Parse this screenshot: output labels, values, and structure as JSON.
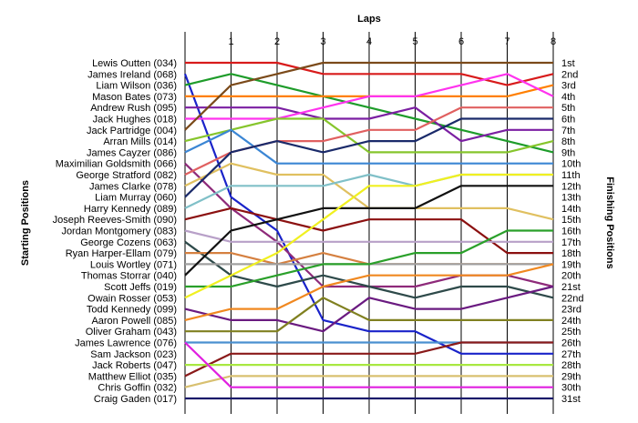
{
  "chart_data": {
    "type": "line",
    "title": "",
    "xlabel": "Laps",
    "ylabel_left": "Starting Positions",
    "ylabel_right": "Finishing Positions",
    "laps": [
      1,
      2,
      3,
      4,
      5,
      6,
      7,
      8
    ],
    "x_range": [
      0,
      8
    ],
    "position_range": [
      1,
      31
    ],
    "grid": "vertical lines at each lap",
    "drivers": [
      "Lewis Outten (034)",
      "James Ireland (068)",
      "Liam Wilson (036)",
      "Mason Bates (073)",
      "Andrew Rush (095)",
      "Jack Hughes (018)",
      "Jack Partridge (004)",
      "Arran Mills (014)",
      "James Cayzer (086)",
      "Maximilian Goldsmith (066)",
      "George Stratford (082)",
      "James Clarke (078)",
      "Liam Murray (060)",
      "Harry Kennedy (089)",
      "Joseph Reeves-Smith (090)",
      "Jordan Montgomery (083)",
      "George Cozens (063)",
      "Ryan Harper-Ellam (079)",
      "Louis Wortley (071)",
      "Thomas Storrar (040)",
      "Scott Jeffs (019)",
      "Owain Rosser (053)",
      "Todd Kennedy (099)",
      "Aaron Powell (085)",
      "Oliver Graham (043)",
      "James Lawrence (076)",
      "Sam Jackson (023)",
      "Jack Roberts (047)",
      "Matthew Elliot (035)",
      "Chris Goffin (032)",
      "Craig Gaden (017)"
    ],
    "finish_labels": [
      "1st",
      "2nd",
      "3rd",
      "4th",
      "5th",
      "6th",
      "7th",
      "8th",
      "9th",
      "10th",
      "11th",
      "12th",
      "13th",
      "14th",
      "15th",
      "16th",
      "17th",
      "18th",
      "19th",
      "20th",
      "21st",
      "22nd",
      "23rd",
      "24th",
      "25th",
      "26th",
      "27th",
      "28th",
      "29th",
      "30th",
      "31st"
    ],
    "series": [
      {
        "color": "#d81b1b",
        "positions": [
          1,
          1,
          1,
          2,
          2,
          2,
          2,
          3,
          2
        ]
      },
      {
        "color": "#1a23c9",
        "positions": [
          2,
          13,
          16,
          24,
          25,
          25,
          27,
          27,
          27
        ]
      },
      {
        "color": "#1e9c2a",
        "positions": [
          3,
          2,
          3,
          4,
          5,
          6,
          7,
          8,
          9
        ]
      },
      {
        "color": "#ff7f00",
        "positions": [
          4,
          4,
          4,
          4,
          4,
          4,
          4,
          4,
          3
        ]
      },
      {
        "color": "#7b1fa2",
        "positions": [
          5,
          5,
          5,
          6,
          6,
          5,
          8,
          7,
          7
        ]
      },
      {
        "color": "#ff33ee",
        "positions": [
          6,
          6,
          6,
          5,
          4,
          4,
          3,
          2,
          4
        ]
      },
      {
        "color": "#7b4a1a",
        "positions": [
          7,
          3,
          2,
          1,
          1,
          1,
          1,
          1,
          1
        ]
      },
      {
        "color": "#86c52c",
        "positions": [
          8,
          7,
          6,
          6,
          9,
          9,
          9,
          9,
          8
        ]
      },
      {
        "color": "#3b86d4",
        "positions": [
          9,
          7,
          10,
          10,
          10,
          10,
          10,
          10,
          10
        ]
      },
      {
        "color": "#8e2a7a",
        "positions": [
          10,
          14,
          17,
          21,
          21,
          21,
          20,
          20,
          21
        ]
      },
      {
        "color": "#e06060",
        "positions": [
          11,
          9,
          8,
          8,
          7,
          7,
          5,
          5,
          5
        ]
      },
      {
        "color": "#e0c060",
        "positions": [
          12,
          10,
          11,
          11,
          14,
          14,
          14,
          14,
          15
        ]
      },
      {
        "color": "#1a2a6a",
        "positions": [
          13,
          9,
          8,
          9,
          8,
          8,
          6,
          6,
          6
        ]
      },
      {
        "color": "#80c0c8",
        "positions": [
          14,
          12,
          12,
          12,
          11,
          12,
          11,
          11,
          11
        ]
      },
      {
        "color": "#8b1010",
        "positions": [
          15,
          14,
          15,
          16,
          15,
          15,
          15,
          18,
          18
        ]
      },
      {
        "color": "#b8a0c8",
        "positions": [
          16,
          17,
          17,
          17,
          17,
          17,
          17,
          17,
          17
        ]
      },
      {
        "color": "#2e4a4a",
        "positions": [
          17,
          20,
          21,
          20,
          21,
          22,
          21,
          21,
          22
        ]
      },
      {
        "color": "#d58040",
        "positions": [
          18,
          18,
          19,
          18,
          19,
          19,
          19,
          19,
          19
        ]
      },
      {
        "color": "#a0a0a0",
        "positions": [
          19,
          19,
          19,
          19,
          19,
          19,
          19,
          19,
          19
        ]
      },
      {
        "color": "#111111",
        "positions": [
          20,
          16,
          15,
          14,
          14,
          14,
          12,
          12,
          12
        ]
      },
      {
        "color": "#2aa02a",
        "positions": [
          21,
          21,
          20,
          19,
          19,
          18,
          18,
          16,
          16
        ]
      },
      {
        "color": "#f0f020",
        "positions": [
          22,
          20,
          18,
          15,
          12,
          12,
          11,
          11,
          11
        ]
      },
      {
        "color": "#6a1a80",
        "positions": [
          23,
          24,
          24,
          25,
          22,
          23,
          23,
          22,
          21
        ]
      },
      {
        "color": "#f08820",
        "positions": [
          24,
          23,
          23,
          21,
          20,
          20,
          20,
          20,
          19
        ]
      },
      {
        "color": "#808020",
        "positions": [
          25,
          25,
          25,
          22,
          24,
          24,
          24,
          24,
          24
        ]
      },
      {
        "color": "#4a90d0",
        "positions": [
          26,
          26,
          26,
          26,
          26,
          26,
          26,
          26,
          26
        ]
      },
      {
        "color": "#8a1a1a",
        "positions": [
          29,
          27,
          27,
          27,
          27,
          27,
          26,
          26,
          26
        ]
      },
      {
        "color": "#a8e840",
        "positions": [
          28,
          28,
          28,
          28,
          28,
          28,
          28,
          28,
          28
        ]
      },
      {
        "color": "#d8c070",
        "positions": [
          30,
          29,
          29,
          29,
          29,
          29,
          29,
          29,
          29
        ]
      },
      {
        "color": "#e020e0",
        "positions": [
          26,
          30,
          30,
          30,
          30,
          30,
          30,
          30,
          30
        ]
      },
      {
        "color": "#1a1a6a",
        "positions": [
          31,
          31,
          31,
          31,
          31,
          31,
          31,
          31,
          31
        ]
      }
    ]
  }
}
